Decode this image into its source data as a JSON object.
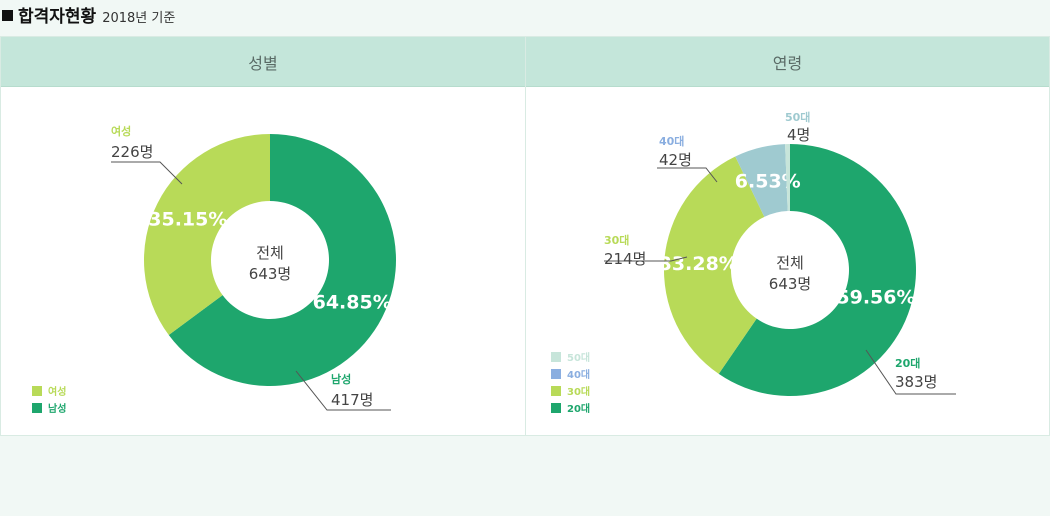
{
  "header": {
    "title": "합격자현황",
    "subtitle": "2018년 기준"
  },
  "colors": {
    "male": "#1ea66d",
    "female": "#b8da58",
    "age20": "#1ea66d",
    "age30": "#b8da58",
    "age40": "#9fcad0",
    "age50": "#c7e5da",
    "legend40": "#8aaee0"
  },
  "chart_data": [
    {
      "type": "pie",
      "panel_title": "성별",
      "center_label": "전체",
      "center_value": "643명",
      "slices": [
        {
          "key": "male",
          "label": "남성",
          "count": "417명",
          "value": 417,
          "percent": "64.85%"
        },
        {
          "key": "female",
          "label": "여성",
          "count": "226명",
          "value": 226,
          "percent": "35.15%"
        }
      ],
      "legend": [
        "여성",
        "남성"
      ]
    },
    {
      "type": "pie",
      "panel_title": "연령",
      "center_label": "전체",
      "center_value": "643명",
      "slices": [
        {
          "key": "age20",
          "label": "20대",
          "count": "383명",
          "value": 383,
          "percent": "59.56%"
        },
        {
          "key": "age30",
          "label": "30대",
          "count": "214명",
          "value": 214,
          "percent": "33.28%"
        },
        {
          "key": "age40",
          "label": "40대",
          "count": "42명",
          "value": 42,
          "percent": "6.53%"
        },
        {
          "key": "age50",
          "label": "50대",
          "count": "4명",
          "value": 4,
          "percent": ""
        }
      ],
      "legend": [
        "50대",
        "40대",
        "30대",
        "20대"
      ]
    }
  ]
}
